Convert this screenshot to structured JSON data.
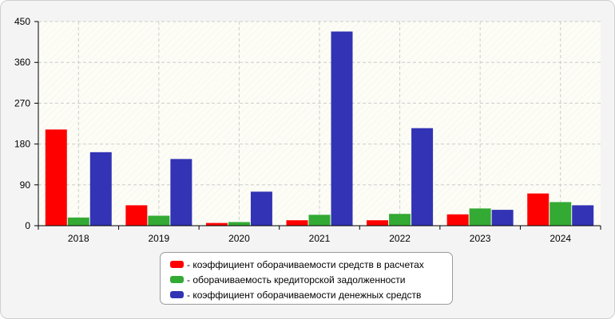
{
  "chart_data": {
    "type": "bar",
    "categories": [
      "2018",
      "2019",
      "2020",
      "2021",
      "2022",
      "2023",
      "2024"
    ],
    "series": [
      {
        "name": "- коэффициент оборачиваемости средств в расчетах",
        "color": "#ff0000",
        "values": [
          212,
          45,
          6,
          12,
          12,
          25,
          71
        ]
      },
      {
        "name": "- оборачиваемость кредиторской задолженности",
        "color": "#33aa33",
        "values": [
          18,
          22,
          8,
          24,
          26,
          38,
          52
        ]
      },
      {
        "name": "- коэффициент оборачиваемости денежных средств",
        "color": "#3333b5",
        "values": [
          162,
          147,
          75,
          428,
          215,
          35,
          45
        ]
      }
    ],
    "y_ticks": [
      "0",
      "90",
      "180",
      "270",
      "360",
      "450"
    ],
    "ylim": [
      0,
      450
    ],
    "grid": true,
    "legend_position": "bottom-center"
  }
}
